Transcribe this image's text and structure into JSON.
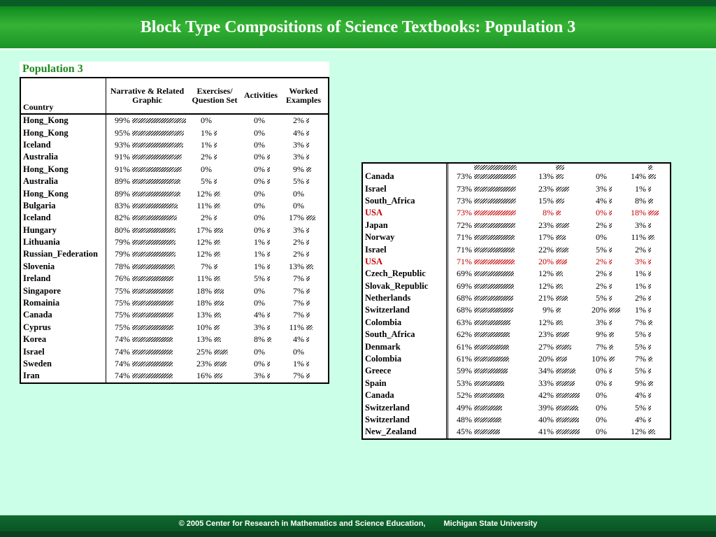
{
  "slide": {
    "title": "Block Type Compositions of Science Textbooks: Population 3",
    "footer_left": "© 2005 Center for Research in Mathematics and Science Education,",
    "footer_right": "Michigan State University"
  },
  "left_table": {
    "caption": "Population 3",
    "headers": {
      "country": "Country",
      "narrative": "Narrative & Related Graphic",
      "exercises": "Exercises/ Question Set",
      "activities": "Activities",
      "worked": "Worked Examples"
    },
    "bar_scale": 0.78,
    "rows": [
      {
        "country": "Hong_Kong",
        "cells": [
          {
            "p": "99%",
            "v": 99
          },
          {
            "p": "0%",
            "v": 0
          },
          {
            "p": "0%",
            "v": 0
          },
          {
            "p": "2%",
            "v": 2
          }
        ]
      },
      {
        "country": "Hong_Kong",
        "cells": [
          {
            "p": "95%",
            "v": 95
          },
          {
            "p": "1%",
            "v": 1
          },
          {
            "p": "0%",
            "v": 0
          },
          {
            "p": "4%",
            "v": 4
          }
        ]
      },
      {
        "country": "Iceland",
        "cells": [
          {
            "p": "93%",
            "v": 93
          },
          {
            "p": "1%",
            "v": 1
          },
          {
            "p": "0%",
            "v": 0
          },
          {
            "p": "3%",
            "v": 3
          }
        ]
      },
      {
        "country": "Australia",
        "cells": [
          {
            "p": "91%",
            "v": 91
          },
          {
            "p": "2%",
            "v": 2
          },
          {
            "p": "0%",
            "v": 0.5
          },
          {
            "p": "3%",
            "v": 3
          }
        ]
      },
      {
        "country": "Hong_Kong",
        "cells": [
          {
            "p": "91%",
            "v": 91
          },
          {
            "p": "0%",
            "v": 0
          },
          {
            "p": "0%",
            "v": 0.5
          },
          {
            "p": "9%",
            "v": 9
          }
        ]
      },
      {
        "country": "Australia",
        "cells": [
          {
            "p": "89%",
            "v": 89
          },
          {
            "p": "5%",
            "v": 5
          },
          {
            "p": "0%",
            "v": 0.5
          },
          {
            "p": "5%",
            "v": 5
          }
        ]
      },
      {
        "country": "Hong_Kong",
        "cells": [
          {
            "p": "89%",
            "v": 89
          },
          {
            "p": "12%",
            "v": 12
          },
          {
            "p": "0%",
            "v": 0
          },
          {
            "p": "0%",
            "v": 0
          }
        ]
      },
      {
        "country": "Bulgaria",
        "cells": [
          {
            "p": "83%",
            "v": 83
          },
          {
            "p": "11%",
            "v": 11
          },
          {
            "p": "0%",
            "v": 0
          },
          {
            "p": "0%",
            "v": 0
          }
        ]
      },
      {
        "country": "Iceland",
        "cells": [
          {
            "p": "82%",
            "v": 82
          },
          {
            "p": "2%",
            "v": 2
          },
          {
            "p": "0%",
            "v": 0
          },
          {
            "p": "17%",
            "v": 17
          }
        ]
      },
      {
        "country": "Hungary",
        "cells": [
          {
            "p": "80%",
            "v": 80
          },
          {
            "p": "17%",
            "v": 17
          },
          {
            "p": "0%",
            "v": 0.5
          },
          {
            "p": "3%",
            "v": 3
          }
        ]
      },
      {
        "country": "Lithuania",
        "cells": [
          {
            "p": "79%",
            "v": 79
          },
          {
            "p": "12%",
            "v": 12
          },
          {
            "p": "1%",
            "v": 1
          },
          {
            "p": "2%",
            "v": 2
          }
        ]
      },
      {
        "country": "Russian_Federation",
        "cells": [
          {
            "p": "79%",
            "v": 79
          },
          {
            "p": "12%",
            "v": 12
          },
          {
            "p": "1%",
            "v": 1
          },
          {
            "p": "2%",
            "v": 2
          }
        ]
      },
      {
        "country": "Slovenia",
        "cells": [
          {
            "p": "78%",
            "v": 78
          },
          {
            "p": "7%",
            "v": 7
          },
          {
            "p": "1%",
            "v": 1
          },
          {
            "p": "13%",
            "v": 13
          }
        ]
      },
      {
        "country": "Ireland",
        "cells": [
          {
            "p": "76%",
            "v": 76
          },
          {
            "p": "11%",
            "v": 11
          },
          {
            "p": "5%",
            "v": 5
          },
          {
            "p": "7%",
            "v": 7
          }
        ]
      },
      {
        "country": "Singapore",
        "cells": [
          {
            "p": "75%",
            "v": 75
          },
          {
            "p": "18%",
            "v": 18
          },
          {
            "p": "0%",
            "v": 0
          },
          {
            "p": "7%",
            "v": 7
          }
        ]
      },
      {
        "country": "Romainia",
        "cells": [
          {
            "p": "75%",
            "v": 75
          },
          {
            "p": "18%",
            "v": 18
          },
          {
            "p": "0%",
            "v": 0
          },
          {
            "p": "7%",
            "v": 7
          }
        ]
      },
      {
        "country": "Canada",
        "cells": [
          {
            "p": "75%",
            "v": 75
          },
          {
            "p": "13%",
            "v": 13
          },
          {
            "p": "4%",
            "v": 4
          },
          {
            "p": "7%",
            "v": 7
          }
        ]
      },
      {
        "country": "Cyprus",
        "cells": [
          {
            "p": "75%",
            "v": 75
          },
          {
            "p": "10%",
            "v": 10
          },
          {
            "p": "3%",
            "v": 3
          },
          {
            "p": "11%",
            "v": 11
          }
        ]
      },
      {
        "country": "Korea",
        "cells": [
          {
            "p": "74%",
            "v": 74
          },
          {
            "p": "13%",
            "v": 13
          },
          {
            "p": "8%",
            "v": 8
          },
          {
            "p": "4%",
            "v": 4
          }
        ]
      },
      {
        "country": "Israel",
        "cells": [
          {
            "p": "74%",
            "v": 74
          },
          {
            "p": "25%",
            "v": 25
          },
          {
            "p": "0%",
            "v": 0
          },
          {
            "p": "0%",
            "v": 0
          }
        ]
      },
      {
        "country": "Sweden",
        "cells": [
          {
            "p": "74%",
            "v": 74
          },
          {
            "p": "23%",
            "v": 23
          },
          {
            "p": "0%",
            "v": 0.5
          },
          {
            "p": "1%",
            "v": 1
          }
        ]
      },
      {
        "country": "Iran",
        "cells": [
          {
            "p": "74%",
            "v": 74
          },
          {
            "p": "16%",
            "v": 16
          },
          {
            "p": "3%",
            "v": 3
          },
          {
            "p": "7%",
            "v": 7
          }
        ]
      }
    ]
  },
  "right_table": {
    "bar_scale": 0.82,
    "rows": [
      {
        "clip": true,
        "country": "",
        "cells": [
          {
            "p": "",
            "v": 74
          },
          {
            "p": "",
            "v": 15
          },
          {
            "p": "",
            "v": 0
          },
          {
            "p": "",
            "v": 7
          }
        ]
      },
      {
        "country": "Canada",
        "cells": [
          {
            "p": "73%",
            "v": 73
          },
          {
            "p": "13%",
            "v": 13
          },
          {
            "p": "0%",
            "v": 0
          },
          {
            "p": "14%",
            "v": 14
          }
        ]
      },
      {
        "country": "Israel",
        "cells": [
          {
            "p": "73%",
            "v": 73
          },
          {
            "p": "23%",
            "v": 23
          },
          {
            "p": "3%",
            "v": 3
          },
          {
            "p": "1%",
            "v": 1
          }
        ]
      },
      {
        "country": "South_Africa",
        "cells": [
          {
            "p": "73%",
            "v": 73
          },
          {
            "p": "15%",
            "v": 15
          },
          {
            "p": "4%",
            "v": 4
          },
          {
            "p": "8%",
            "v": 8
          }
        ]
      },
      {
        "country": "USA",
        "red": true,
        "cells": [
          {
            "p": "73%",
            "v": 73
          },
          {
            "p": "8%",
            "v": 8
          },
          {
            "p": "0%",
            "v": 0.5
          },
          {
            "p": "18%",
            "v": 18
          }
        ]
      },
      {
        "country": "Japan",
        "cells": [
          {
            "p": "72%",
            "v": 72
          },
          {
            "p": "23%",
            "v": 23
          },
          {
            "p": "2%",
            "v": 2
          },
          {
            "p": "3%",
            "v": 3
          }
        ]
      },
      {
        "country": "Norway",
        "cells": [
          {
            "p": "71%",
            "v": 71
          },
          {
            "p": "17%",
            "v": 17
          },
          {
            "p": "0%",
            "v": 0
          },
          {
            "p": "11%",
            "v": 11
          }
        ]
      },
      {
        "country": "Israel",
        "cells": [
          {
            "p": "71%",
            "v": 71
          },
          {
            "p": "22%",
            "v": 22
          },
          {
            "p": "5%",
            "v": 5
          },
          {
            "p": "2%",
            "v": 2
          }
        ]
      },
      {
        "country": "USA",
        "red": true,
        "cells": [
          {
            "p": "71%",
            "v": 71
          },
          {
            "p": "20%",
            "v": 20
          },
          {
            "p": "2%",
            "v": 2
          },
          {
            "p": "3%",
            "v": 3
          }
        ]
      },
      {
        "country": "Czech_Republic",
        "cells": [
          {
            "p": "69%",
            "v": 69
          },
          {
            "p": "12%",
            "v": 12
          },
          {
            "p": "2%",
            "v": 2
          },
          {
            "p": "1%",
            "v": 1
          }
        ]
      },
      {
        "country": "Slovak_Republic",
        "cells": [
          {
            "p": "69%",
            "v": 69
          },
          {
            "p": "12%",
            "v": 12
          },
          {
            "p": "2%",
            "v": 2
          },
          {
            "p": "1%",
            "v": 1
          }
        ]
      },
      {
        "country": "Netherlands",
        "cells": [
          {
            "p": "68%",
            "v": 68
          },
          {
            "p": "21%",
            "v": 21
          },
          {
            "p": "5%",
            "v": 5
          },
          {
            "p": "2%",
            "v": 2
          }
        ]
      },
      {
        "country": "Switzerland",
        "cells": [
          {
            "p": "68%",
            "v": 68
          },
          {
            "p": "9%",
            "v": 9
          },
          {
            "p": "20%",
            "v": 20
          },
          {
            "p": "1%",
            "v": 1
          }
        ]
      },
      {
        "country": "Colombia",
        "cells": [
          {
            "p": "63%",
            "v": 63
          },
          {
            "p": "12%",
            "v": 12
          },
          {
            "p": "3%",
            "v": 3
          },
          {
            "p": "7%",
            "v": 7
          }
        ]
      },
      {
        "country": "South_Africa",
        "cells": [
          {
            "p": "62%",
            "v": 62
          },
          {
            "p": "23%",
            "v": 23
          },
          {
            "p": "9%",
            "v": 9
          },
          {
            "p": "5%",
            "v": 5
          }
        ]
      },
      {
        "country": "Denmark",
        "cells": [
          {
            "p": "61%",
            "v": 61
          },
          {
            "p": "27%",
            "v": 27
          },
          {
            "p": "7%",
            "v": 7
          },
          {
            "p": "5%",
            "v": 5
          }
        ]
      },
      {
        "country": "Colombia",
        "cells": [
          {
            "p": "61%",
            "v": 61
          },
          {
            "p": "20%",
            "v": 20
          },
          {
            "p": "10%",
            "v": 10
          },
          {
            "p": "7%",
            "v": 7
          }
        ]
      },
      {
        "country": "Greece",
        "cells": [
          {
            "p": "59%",
            "v": 59
          },
          {
            "p": "34%",
            "v": 34
          },
          {
            "p": "0%",
            "v": 0.5
          },
          {
            "p": "5%",
            "v": 5
          }
        ]
      },
      {
        "country": "Spain",
        "cells": [
          {
            "p": "53%",
            "v": 53
          },
          {
            "p": "33%",
            "v": 33
          },
          {
            "p": "0%",
            "v": 0.5
          },
          {
            "p": "9%",
            "v": 9
          }
        ]
      },
      {
        "country": "Canada",
        "cells": [
          {
            "p": "52%",
            "v": 52
          },
          {
            "p": "42%",
            "v": 42
          },
          {
            "p": "0%",
            "v": 0
          },
          {
            "p": "4%",
            "v": 4
          }
        ]
      },
      {
        "country": "Switzerland",
        "cells": [
          {
            "p": "49%",
            "v": 49
          },
          {
            "p": "39%",
            "v": 39
          },
          {
            "p": "0%",
            "v": 0
          },
          {
            "p": "5%",
            "v": 5
          }
        ]
      },
      {
        "country": "Switzerland",
        "cells": [
          {
            "p": "48%",
            "v": 48
          },
          {
            "p": "40%",
            "v": 40
          },
          {
            "p": "0%",
            "v": 0
          },
          {
            "p": "4%",
            "v": 4
          }
        ]
      },
      {
        "country": "New_Zealand",
        "cells": [
          {
            "p": "45%",
            "v": 45
          },
          {
            "p": "41%",
            "v": 41
          },
          {
            "p": "0%",
            "v": 0
          },
          {
            "p": "12%",
            "v": 12
          }
        ]
      }
    ]
  }
}
